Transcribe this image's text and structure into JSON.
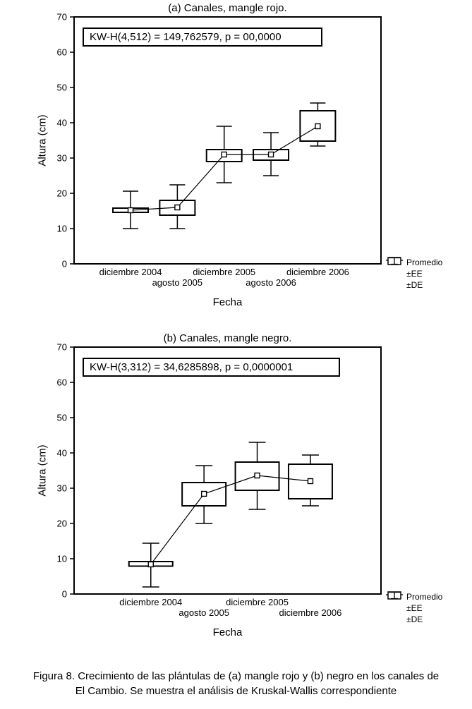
{
  "caption": {
    "line1": "Figura 8. Crecimiento de las plántulas de (a) mangle rojo y (b) negro en los canales de",
    "line2": "El Cambio. Se muestra el análisis de Kruskal-Wallis correspondiente"
  },
  "legend": {
    "items": [
      {
        "label": "Promedio",
        "icon": "mean-square-marker"
      },
      {
        "label": "±EE",
        "icon": "standard-error-box"
      },
      {
        "label": "±DE",
        "icon": "standard-deviation-whisker"
      }
    ]
  },
  "chart_data": [
    {
      "type": "box",
      "title": "(a) Canales, mangle rojo.",
      "annotation": "KW-H(4,512) = 149,762579, p = 00,0000",
      "xlabel": "Fecha",
      "ylabel": "Altura (cm)",
      "ylim": [
        0,
        70
      ],
      "yticks": [
        0,
        10,
        20,
        30,
        40,
        50,
        60,
        70
      ],
      "grid": false,
      "legend_position": "bottom-right",
      "categories": [
        "diciembre 2004",
        "agosto 2005",
        "diciembre 2005",
        "agosto 2006",
        "diciembre 2006"
      ],
      "points": [
        {
          "mean": 15.2,
          "ee": [
            14.6,
            15.8
          ],
          "de": [
            10,
            20.6
          ]
        },
        {
          "mean": 16.0,
          "ee": [
            13.8,
            18.0
          ],
          "de": [
            10,
            22.4
          ]
        },
        {
          "mean": 31.0,
          "ee": [
            29.0,
            32.4
          ],
          "de": [
            23,
            39.0
          ]
        },
        {
          "mean": 31.0,
          "ee": [
            29.4,
            32.4
          ],
          "de": [
            25,
            37.2
          ]
        },
        {
          "mean": 39.0,
          "ee": [
            34.8,
            43.4
          ],
          "de": [
            33.4,
            45.6
          ]
        }
      ]
    },
    {
      "type": "box",
      "title": "(b) Canales, mangle negro.",
      "annotation": "KW-H(3,312) = 34,6285898, p = 0,0000001",
      "xlabel": "Fecha",
      "ylabel": "Altura (cm)",
      "ylim": [
        0,
        70
      ],
      "yticks": [
        0,
        10,
        20,
        30,
        40,
        50,
        60,
        70
      ],
      "grid": false,
      "legend_position": "bottom-right",
      "categories": [
        "diciembre 2004",
        "agosto 2005",
        "diciembre 2005",
        "diciembre 2006"
      ],
      "points": [
        {
          "mean": 8.4,
          "ee": [
            7.9,
            9.2
          ],
          "de": [
            2,
            14.4
          ]
        },
        {
          "mean": 28.4,
          "ee": [
            25.0,
            31.6
          ],
          "de": [
            20,
            36.4
          ]
        },
        {
          "mean": 33.6,
          "ee": [
            29.4,
            37.4
          ],
          "de": [
            24,
            43.0
          ]
        },
        {
          "mean": 32.0,
          "ee": [
            27.0,
            36.8
          ],
          "de": [
            25,
            39.4
          ]
        }
      ]
    }
  ]
}
